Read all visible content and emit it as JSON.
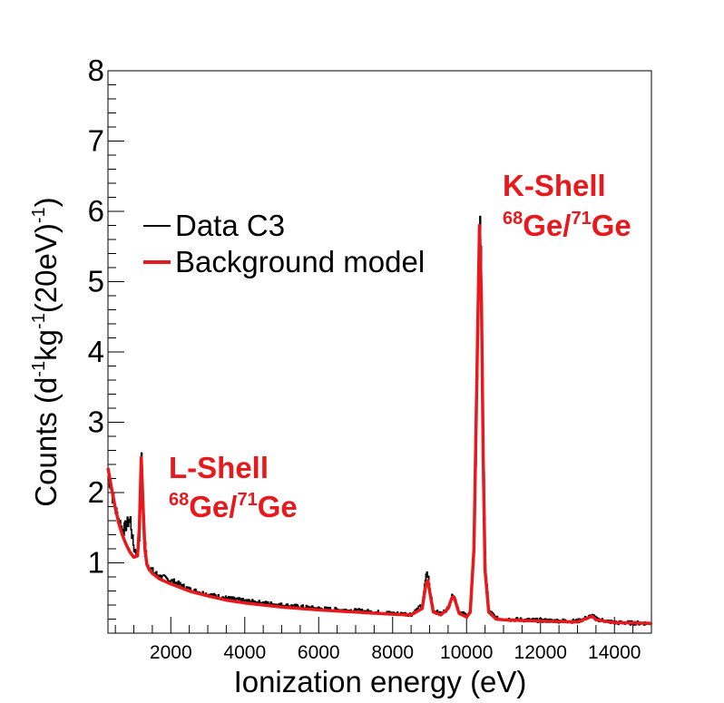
{
  "chart_data": {
    "type": "line",
    "title": "",
    "xlabel": "Ionization energy (eV)",
    "ylabel": {
      "parts": [
        "Counts (d",
        "-1",
        "kg",
        "-1",
        "(20eV)",
        "-1",
        ")"
      ]
    },
    "xlim": [
      300,
      15000
    ],
    "ylim": [
      0,
      8
    ],
    "x_ticks": [
      2000,
      4000,
      6000,
      8000,
      10000,
      12000,
      14000
    ],
    "x_tick_labels": [
      "2000",
      "4000",
      "6000",
      "8000",
      "10000",
      "12000",
      "14000"
    ],
    "y_ticks": [
      1,
      2,
      3,
      4,
      5,
      6,
      7,
      8
    ],
    "y_tick_labels": [
      "1",
      "2",
      "3",
      "4",
      "5",
      "6",
      "7",
      "8"
    ],
    "legend": [
      {
        "label": "Data C3",
        "color": "#000000"
      },
      {
        "label": "Background model",
        "color": "#e8191c"
      }
    ],
    "annotations": [
      {
        "id": "l-shell",
        "line1": "L-Shell",
        "sup1": "68",
        "mid": "Ge/",
        "sup2": "71",
        "end": "Ge",
        "color": "#e8191c",
        "anchor_x": 1900,
        "anchor_y": 2.25
      },
      {
        "id": "k-shell",
        "line1": "K-Shell",
        "sup1": "68",
        "mid": "Ge/",
        "sup2": "71",
        "end": "Ge",
        "color": "#e8191c",
        "anchor_x": 11100,
        "anchor_y": 6.35
      }
    ],
    "series": [
      {
        "name": "Background model",
        "color": "#e8191c",
        "x": [
          300,
          400,
          500,
          600,
          700,
          800,
          900,
          1000,
          1100,
          1150,
          1200,
          1250,
          1300,
          1350,
          1400,
          1500,
          1700,
          2000,
          2500,
          3000,
          3500,
          4000,
          5000,
          6000,
          7000,
          8000,
          8500,
          8800,
          8900,
          8950,
          9000,
          9100,
          9300,
          9500,
          9600,
          9650,
          9700,
          9800,
          10000,
          10100,
          10200,
          10300,
          10350,
          10400,
          10450,
          10500,
          10600,
          10800,
          11000,
          12000,
          13000,
          13300,
          13400,
          13500,
          14000,
          15000
        ],
        "y": [
          2.35,
          2.05,
          1.78,
          1.55,
          1.38,
          1.25,
          1.15,
          1.08,
          1.1,
          1.5,
          2.5,
          1.8,
          1.2,
          0.98,
          0.92,
          0.85,
          0.77,
          0.7,
          0.6,
          0.53,
          0.47,
          0.43,
          0.37,
          0.33,
          0.3,
          0.27,
          0.26,
          0.35,
          0.7,
          0.75,
          0.6,
          0.3,
          0.26,
          0.35,
          0.5,
          0.52,
          0.45,
          0.28,
          0.23,
          0.3,
          1.2,
          4.3,
          5.8,
          4.8,
          2.5,
          0.9,
          0.3,
          0.2,
          0.19,
          0.17,
          0.16,
          0.22,
          0.24,
          0.19,
          0.15,
          0.14
        ]
      },
      {
        "name": "Data C3",
        "color": "#000000",
        "x": [
          300,
          400,
          500,
          600,
          700,
          800,
          900,
          950,
          1000,
          1100,
          1150,
          1200,
          1250,
          1300,
          1350,
          1400,
          1500,
          1700,
          2000,
          2500,
          3000,
          3500,
          4000,
          5000,
          6000,
          7000,
          8000,
          8500,
          8800,
          8900,
          8950,
          9000,
          9100,
          9300,
          9500,
          9600,
          9650,
          9700,
          9800,
          10000,
          10100,
          10200,
          10300,
          10350,
          10400,
          10450,
          10500,
          10600,
          10800,
          11000,
          12000,
          13000,
          13300,
          13400,
          13500,
          14000,
          15000
        ],
        "y": [
          2.3,
          2.0,
          1.75,
          1.6,
          1.45,
          1.55,
          1.62,
          1.35,
          1.2,
          1.12,
          1.45,
          2.45,
          1.75,
          1.25,
          1.0,
          0.95,
          0.88,
          0.8,
          0.75,
          0.62,
          0.55,
          0.5,
          0.46,
          0.4,
          0.35,
          0.32,
          0.28,
          0.27,
          0.4,
          0.85,
          0.82,
          0.62,
          0.32,
          0.27,
          0.36,
          0.52,
          0.55,
          0.46,
          0.3,
          0.25,
          0.32,
          1.2,
          4.3,
          5.85,
          4.8,
          2.5,
          0.95,
          0.32,
          0.21,
          0.2,
          0.18,
          0.17,
          0.23,
          0.25,
          0.2,
          0.15,
          0.14
        ]
      }
    ]
  }
}
